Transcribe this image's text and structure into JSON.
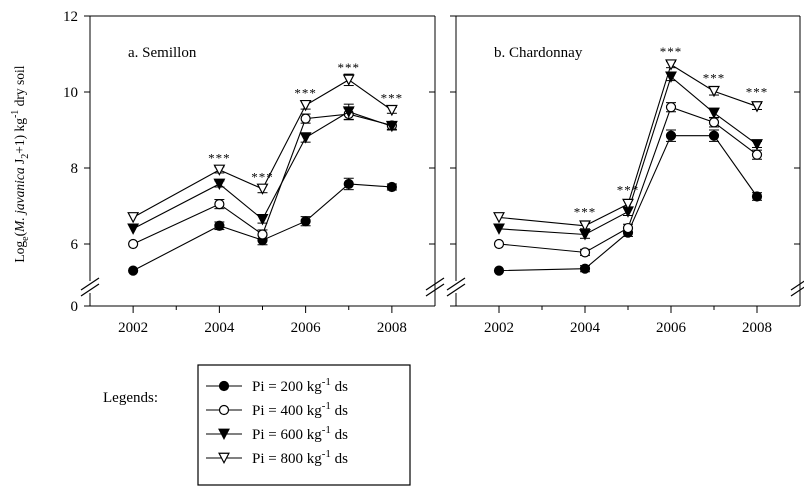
{
  "chart_data": {
    "type": "line",
    "y_label_parts": {
      "log": "Log",
      "e": "e",
      "open": "(",
      "species": "M. javanica",
      "j": " J",
      "two": "2",
      "rest": "+1) kg",
      "minus1": "-1",
      "tail": " dry soil"
    },
    "ylim": [
      0,
      12
    ],
    "y_ticks": [
      0,
      6,
      8,
      10,
      12
    ],
    "y_break": true,
    "xlim": [
      2001,
      2009
    ],
    "x_ticks": [
      2002,
      2004,
      2006,
      2008
    ],
    "series_meta": [
      {
        "name": "Pi = 200 kg-1 ds",
        "marker": "circle",
        "fill": "#000000"
      },
      {
        "name": "Pi = 400 kg-1 ds",
        "marker": "circle",
        "fill": "#ffffff"
      },
      {
        "name": "Pi = 600 kg-1 ds",
        "marker": "triangle-down",
        "fill": "#000000"
      },
      {
        "name": "Pi = 800 kg-1 ds",
        "marker": "triangle-down",
        "fill": "#ffffff"
      }
    ],
    "panels": [
      {
        "title": "a. Semillon",
        "x": [
          2002,
          2004,
          2005,
          2006,
          2007,
          2008
        ],
        "series": [
          {
            "values": [
              5.3,
              6.48,
              6.1,
              6.6,
              7.58,
              7.5
            ],
            "err": [
              0,
              0.1,
              0.12,
              0.12,
              0.15,
              0.08
            ]
          },
          {
            "values": [
              6.0,
              7.05,
              6.25,
              9.3,
              9.42,
              9.12
            ],
            "err": [
              0,
              0.12,
              0.12,
              0.12,
              0.15,
              0.1
            ]
          },
          {
            "values": [
              6.4,
              7.58,
              6.65,
              8.8,
              9.48,
              9.1
            ],
            "err": [
              0,
              0.08,
              0.1,
              0.12,
              0.2,
              0.1
            ]
          },
          {
            "values": [
              6.7,
              7.95,
              7.45,
              9.65,
              10.32,
              9.52
            ],
            "err": [
              0,
              0.08,
              0.1,
              0.1,
              0.15,
              0.08
            ]
          }
        ],
        "annotations": [
          {
            "x": 2004,
            "y": 8.15,
            "text": "***"
          },
          {
            "x": 2005,
            "y": 7.65,
            "text": "***"
          },
          {
            "x": 2006,
            "y": 9.85,
            "text": "***"
          },
          {
            "x": 2007,
            "y": 10.52,
            "text": "***"
          },
          {
            "x": 2008,
            "y": 9.72,
            "text": "***"
          }
        ]
      },
      {
        "title": "b. Chardonnay",
        "x": [
          2002,
          2004,
          2005,
          2006,
          2007,
          2008
        ],
        "series": [
          {
            "values": [
              5.3,
              5.35,
              6.3,
              8.85,
              8.85,
              7.25
            ],
            "err": [
              0,
              0.08,
              0.1,
              0.15,
              0.15,
              0.1
            ]
          },
          {
            "values": [
              6.0,
              5.78,
              6.42,
              9.6,
              9.2,
              8.35
            ],
            "err": [
              0,
              0.08,
              0.1,
              0.12,
              0.12,
              0.12
            ]
          },
          {
            "values": [
              6.4,
              6.25,
              6.85,
              10.4,
              9.45,
              8.62
            ],
            "err": [
              0,
              0.1,
              0.1,
              0.1,
              0.12,
              0.08
            ]
          },
          {
            "values": [
              6.7,
              6.48,
              7.05,
              10.72,
              10.02,
              9.62
            ],
            "err": [
              0,
              0.08,
              0.1,
              0.08,
              0.1,
              0.08
            ]
          }
        ],
        "annotations": [
          {
            "x": 2004,
            "y": 6.72,
            "text": "***"
          },
          {
            "x": 2005,
            "y": 7.3,
            "text": "***"
          },
          {
            "x": 2006,
            "y": 10.95,
            "text": "***"
          },
          {
            "x": 2007,
            "y": 10.25,
            "text": "***"
          },
          {
            "x": 2008,
            "y": 9.88,
            "text": "***"
          }
        ]
      }
    ],
    "legend": {
      "heading": "Legends:",
      "placement": "bottom-center",
      "entries": [
        {
          "pre": "Pi = 200 kg",
          "sup": "-1",
          "post": " ds"
        },
        {
          "pre": "Pi = 400 kg",
          "sup": "-1",
          "post": " ds"
        },
        {
          "pre": "Pi = 600 kg",
          "sup": "-1",
          "post": " ds"
        },
        {
          "pre": "Pi = 800 kg",
          "sup": "-1",
          "post": " ds"
        }
      ]
    }
  }
}
